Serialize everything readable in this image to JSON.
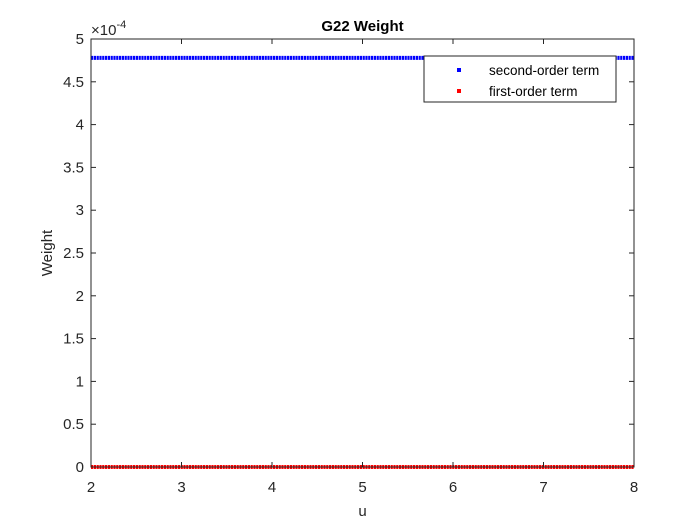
{
  "chart_data": {
    "type": "scatter",
    "title": "G22 Weight",
    "xlabel": "u",
    "ylabel": "Weight",
    "y_exponent_label": "×10",
    "y_exponent_power": "-4",
    "xlim": [
      2,
      8
    ],
    "ylim": [
      0,
      5
    ],
    "x_ticks": [
      "2",
      "3",
      "4",
      "5",
      "6",
      "7",
      "8"
    ],
    "y_ticks": [
      "0",
      "0.5",
      "1",
      "1.5",
      "2",
      "2.5",
      "3",
      "3.5",
      "4",
      "4.5",
      "5"
    ],
    "grid": false,
    "legend_position": "top-right",
    "series": [
      {
        "name": "second-order term",
        "color": "#0000ff",
        "constant_value": 4.78,
        "x_range": [
          2,
          8
        ]
      },
      {
        "name": "first-order term",
        "color": "#ff0000",
        "constant_value": 0.0,
        "x_range": [
          2,
          8
        ]
      }
    ]
  }
}
